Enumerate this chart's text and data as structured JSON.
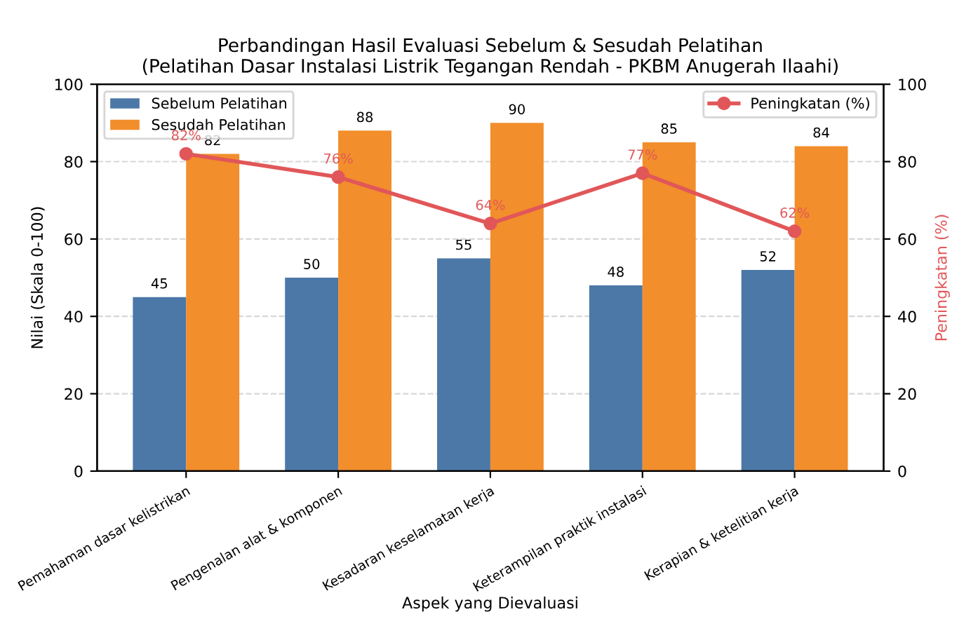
{
  "chart_data": {
    "type": "bar",
    "title": "Perbandingan Hasil Evaluasi Sebelum & Sesudah Pelatihan\n(Pelatihan Dasar Instalasi Listrik Tegangan Rendah - PKBM Anugerah Ilaahi)",
    "xlabel": "Aspek yang Dievaluasi",
    "ylabel": "Nilai (Skala 0-100)",
    "y2label": "Peningkatan (%)",
    "categories": [
      "Pemahaman dasar kelistrikan",
      "Pengenalan alat & komponen",
      "Kesadaran keselamatan kerja",
      "Keterampilan praktik instalasi",
      "Kerapian & ketelitian kerja"
    ],
    "series": [
      {
        "name": "Sebelum Pelatihan",
        "color": "#4c78a8",
        "values": [
          45,
          50,
          55,
          48,
          52
        ]
      },
      {
        "name": "Sesudah Pelatihan",
        "color": "#f28e2b",
        "values": [
          82,
          88,
          90,
          85,
          84
        ]
      },
      {
        "name": "Peningkatan (%)",
        "type": "line",
        "axis": "y2",
        "color": "#e15759",
        "marker": "circle",
        "line_style": "solid",
        "values": [
          82,
          76,
          64,
          77,
          62
        ],
        "value_labels": [
          "82%",
          "76%",
          "64%",
          "77%",
          "62%"
        ]
      }
    ],
    "data_labels": true,
    "ylim": [
      0,
      100
    ],
    "yticks": [
      0,
      20,
      40,
      60,
      80,
      100
    ],
    "y2lim": [
      0,
      100
    ],
    "y2ticks": [
      0,
      20,
      40,
      60,
      80,
      100
    ],
    "grid": "y",
    "legend": "top left"
  }
}
